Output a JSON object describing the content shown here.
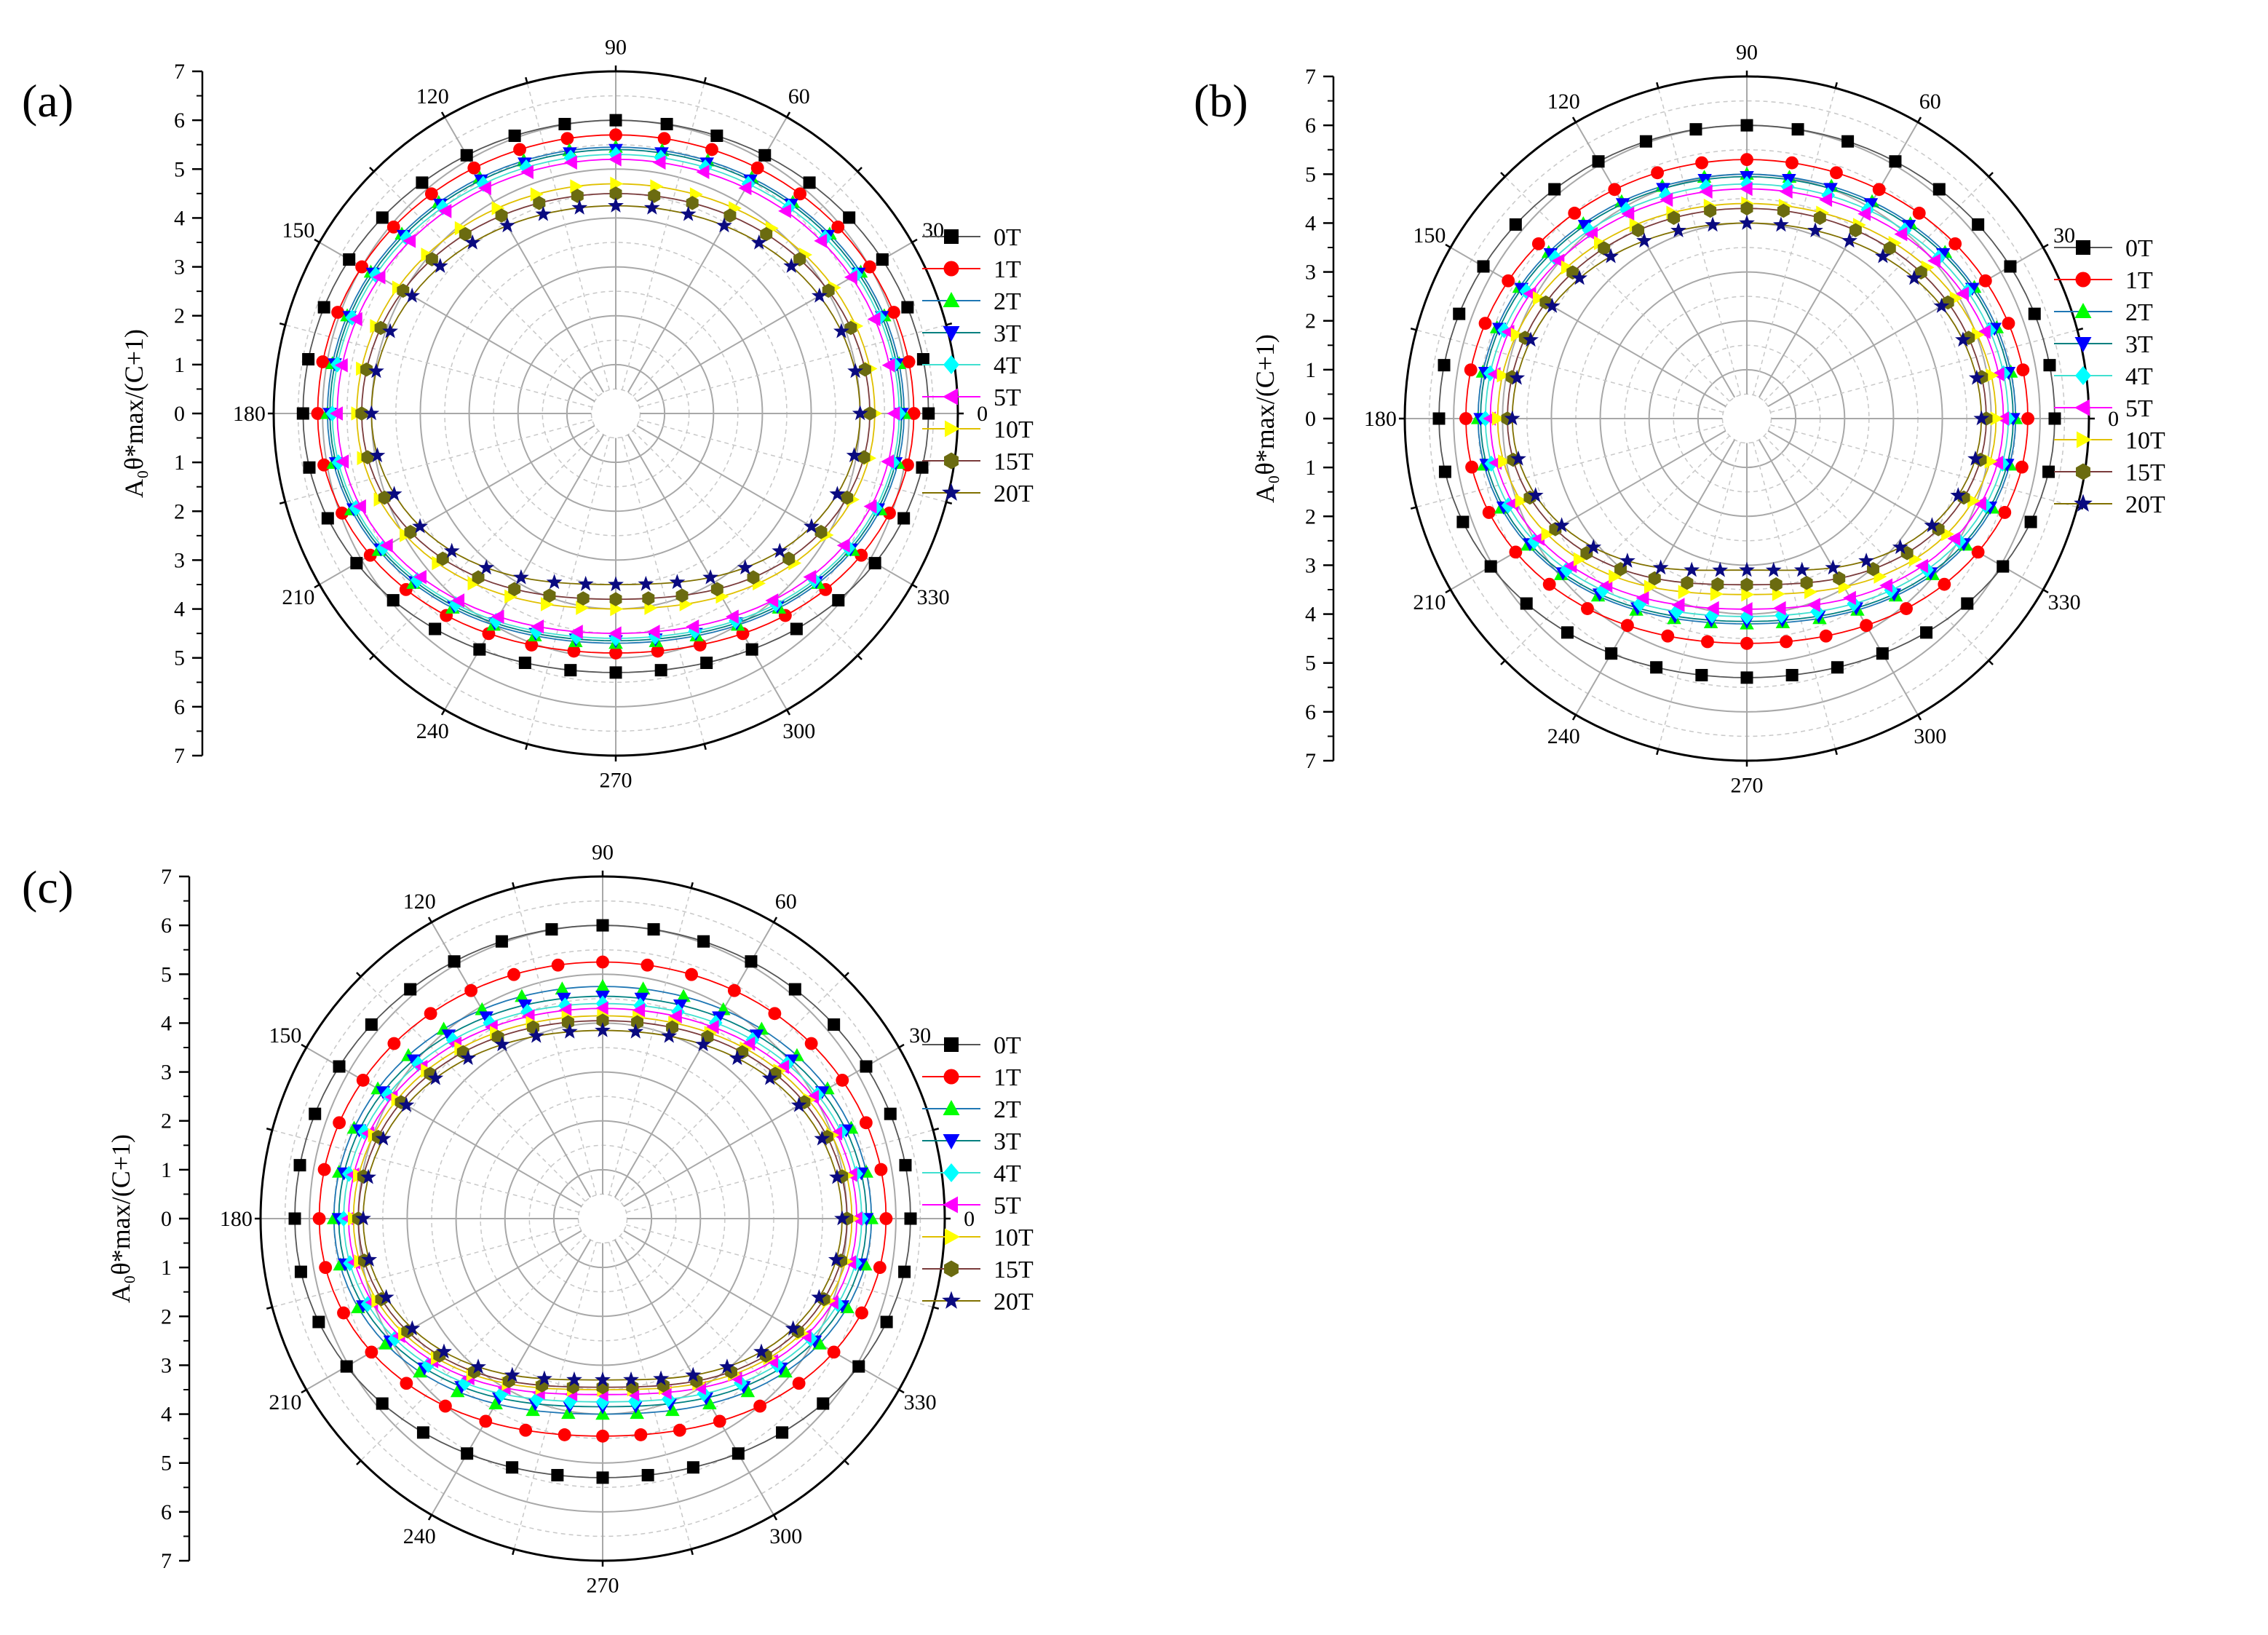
{
  "chart_data": [
    {
      "type": "polar-scatter-line",
      "panel": "(a)",
      "ylabel": "A₀θ*max/(C+1)",
      "r_ticks": [
        "0",
        "1",
        "2",
        "3",
        "4",
        "5",
        "6",
        "7"
      ],
      "angle_labels": [
        "0",
        "30",
        "60",
        "90",
        "120",
        "150",
        "180",
        "210",
        "240",
        "270",
        "300",
        "330"
      ],
      "legend": [
        "0T",
        "1T",
        "2T",
        "3T",
        "4T",
        "5T",
        "10T",
        "15T",
        "20T"
      ],
      "series": [
        {
          "name": "0T",
          "upper": 6.0,
          "side": 6.4,
          "lower": 5.3
        },
        {
          "name": "1T",
          "upper": 5.7,
          "side": 6.1,
          "lower": 4.9
        },
        {
          "name": "2T",
          "upper": 5.45,
          "side": 5.9,
          "lower": 4.7
        },
        {
          "name": "3T",
          "upper": 5.4,
          "side": 5.85,
          "lower": 4.65
        },
        {
          "name": "4T",
          "upper": 5.3,
          "side": 5.8,
          "lower": 4.6
        },
        {
          "name": "5T",
          "upper": 5.2,
          "side": 5.7,
          "lower": 4.5
        },
        {
          "name": "10T",
          "upper": 4.7,
          "side": 5.3,
          "lower": 4.0
        },
        {
          "name": "15T",
          "upper": 4.5,
          "side": 5.2,
          "lower": 3.8
        },
        {
          "name": "20T",
          "upper": 4.25,
          "side": 5.0,
          "lower": 3.5
        }
      ]
    },
    {
      "type": "polar-scatter-line",
      "panel": "(b)",
      "ylabel": "A₀θ*max/(C+1)",
      "r_ticks": [
        "0",
        "1",
        "2",
        "3",
        "4",
        "5",
        "6",
        "7"
      ],
      "angle_labels": [
        "0",
        "30",
        "60",
        "90",
        "120",
        "150",
        "180",
        "210",
        "240",
        "270",
        "300",
        "330"
      ],
      "legend": [
        "0T",
        "1T",
        "2T",
        "3T",
        "4T",
        "5T",
        "10T",
        "15T",
        "20T"
      ],
      "series": [
        {
          "name": "0T",
          "upper": 6.0,
          "side": 6.3,
          "lower": 5.3
        },
        {
          "name": "1T",
          "upper": 5.3,
          "side": 5.75,
          "lower": 4.6
        },
        {
          "name": "2T",
          "upper": 5.0,
          "side": 5.5,
          "lower": 4.2
        },
        {
          "name": "3T",
          "upper": 4.95,
          "side": 5.45,
          "lower": 4.15
        },
        {
          "name": "4T",
          "upper": 4.8,
          "side": 5.35,
          "lower": 4.05
        },
        {
          "name": "5T",
          "upper": 4.7,
          "side": 5.25,
          "lower": 3.9
        },
        {
          "name": "10T",
          "upper": 4.4,
          "side": 5.1,
          "lower": 3.6
        },
        {
          "name": "15T",
          "upper": 4.3,
          "side": 4.9,
          "lower": 3.4
        },
        {
          "name": "20T",
          "upper": 4.0,
          "side": 4.8,
          "lower": 3.1
        }
      ]
    },
    {
      "type": "polar-scatter-line",
      "panel": "(c)",
      "ylabel": "A₀θ*max/(C+1)",
      "r_ticks": [
        "0",
        "1",
        "2",
        "3",
        "4",
        "5",
        "6",
        "7"
      ],
      "angle_labels": [
        "0",
        "30",
        "60",
        "90",
        "120",
        "150",
        "180",
        "210",
        "240",
        "270",
        "300",
        "330"
      ],
      "legend": [
        "0T",
        "1T",
        "2T",
        "3T",
        "4T",
        "5T",
        "10T",
        "15T",
        "20T"
      ],
      "series": [
        {
          "name": "0T",
          "upper": 6.0,
          "side": 6.3,
          "lower": 5.3
        },
        {
          "name": "1T",
          "upper": 5.25,
          "side": 5.8,
          "lower": 4.45
        },
        {
          "name": "2T",
          "upper": 4.75,
          "side": 5.5,
          "lower": 4.0
        },
        {
          "name": "3T",
          "upper": 4.55,
          "side": 5.4,
          "lower": 3.85
        },
        {
          "name": "4T",
          "upper": 4.4,
          "side": 5.3,
          "lower": 3.75
        },
        {
          "name": "5T",
          "upper": 4.3,
          "side": 5.2,
          "lower": 3.6
        },
        {
          "name": "10T",
          "upper": 4.15,
          "side": 5.1,
          "lower": 3.5
        },
        {
          "name": "15T",
          "upper": 4.05,
          "side": 5.0,
          "lower": 3.45
        },
        {
          "name": "20T",
          "upper": 3.85,
          "side": 4.9,
          "lower": 3.3
        }
      ]
    }
  ],
  "style": {
    "series_colors": [
      "#000000",
      "#ff0000",
      "#00ff00",
      "#0000ff",
      "#00ffff",
      "#ff00ff",
      "#ffff00",
      "#6b6b10",
      "#0a0a80"
    ],
    "line_colors": [
      "#555555",
      "#ff0000",
      "#1f77b4",
      "#008080",
      "#40e0d0",
      "#ff00ff",
      "#e0c000",
      "#7a3b3b",
      "#807000"
    ],
    "markers": [
      "square",
      "circle",
      "triangle-up",
      "triangle-down",
      "diamond",
      "triangle-left",
      "triangle-right",
      "hexagon",
      "star"
    ]
  }
}
